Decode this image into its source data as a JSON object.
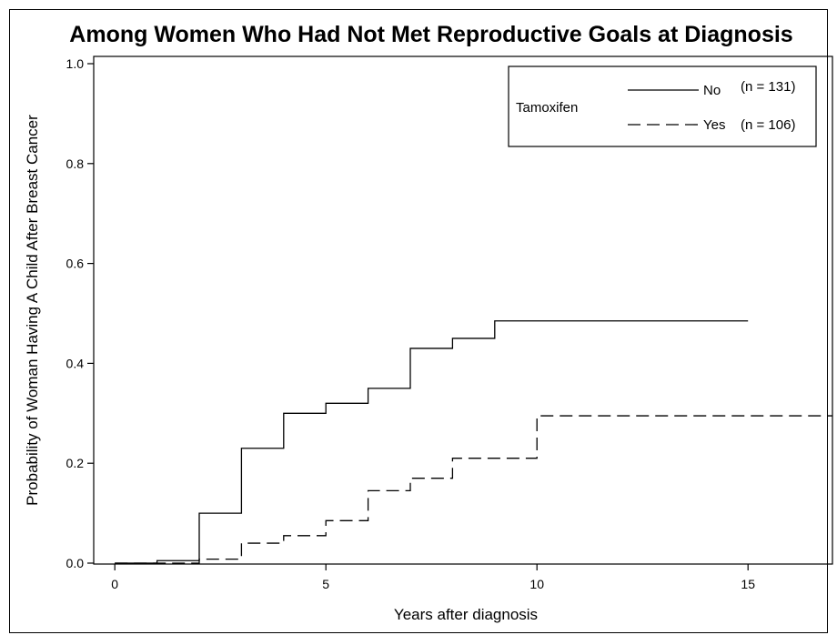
{
  "chart_data": {
    "type": "line",
    "step": true,
    "title": "Among Women Who Had Not Met Reproductive Goals at Diagnosis",
    "xlabel": "Years after diagnosis",
    "ylabel": "Probability of Woman Having A Child After Breast Cancer",
    "xlim": [
      -0.5,
      17
    ],
    "ylim": [
      0,
      1.0
    ],
    "xticks": [
      "0",
      "5",
      "10",
      "15"
    ],
    "yticks": [
      "0.0",
      "0.2",
      "0.4",
      "0.6",
      "0.8",
      "1.0"
    ],
    "grid": false,
    "legend": {
      "position": "top-right",
      "title": "Tamoxifen",
      "entries": [
        {
          "label": "No",
          "n": "(n = 131)",
          "style": "solid"
        },
        {
          "label": "Yes",
          "n": "(n = 106)",
          "style": "dashed"
        }
      ]
    },
    "series": [
      {
        "name": "No",
        "style": "solid",
        "x": [
          0,
          1,
          2,
          3,
          4,
          5,
          6,
          7,
          8,
          9,
          15
        ],
        "y": [
          0.0,
          0.005,
          0.1,
          0.23,
          0.3,
          0.32,
          0.35,
          0.43,
          0.45,
          0.485,
          0.485
        ]
      },
      {
        "name": "Yes",
        "style": "dashed",
        "x": [
          0,
          2,
          3,
          4,
          5,
          6,
          7,
          8,
          10,
          17
        ],
        "y": [
          0.0,
          0.008,
          0.04,
          0.055,
          0.085,
          0.145,
          0.17,
          0.21,
          0.295,
          0.295
        ]
      }
    ]
  }
}
